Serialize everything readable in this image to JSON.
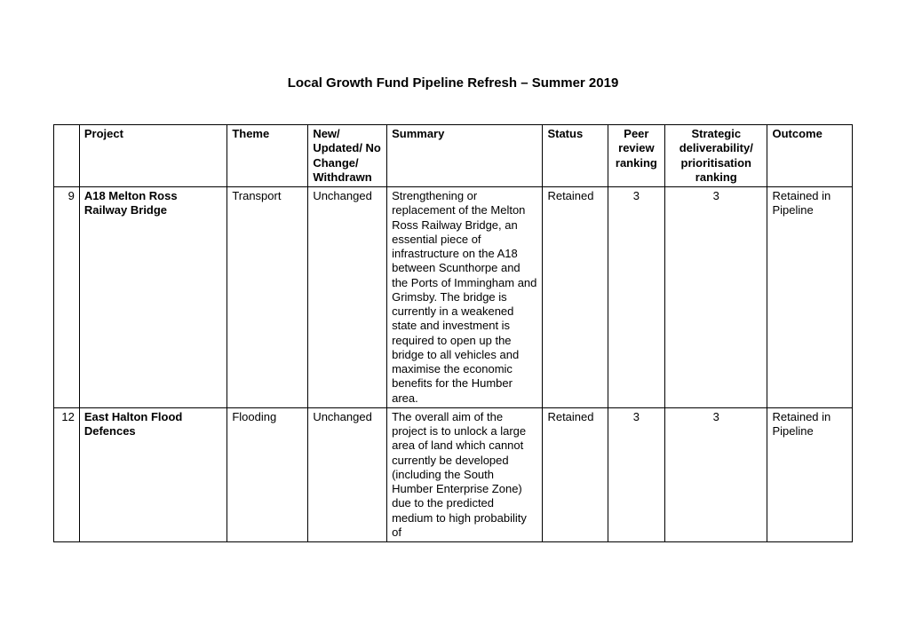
{
  "title": "Local Growth Fund Pipeline Refresh – Summer 2019",
  "headers": {
    "num": "",
    "project": "Project",
    "theme": "Theme",
    "new": "New/ Updated/ No Change/ Withdrawn",
    "summary": "Summary",
    "status": "Status",
    "peer": "Peer review ranking",
    "strategic": "Strategic deliverability/ prioritisation ranking",
    "outcome": "Outcome"
  },
  "rows": [
    {
      "num": "9",
      "project": "A18 Melton Ross Railway Bridge",
      "theme": "Transport",
      "new": "Unchanged",
      "summary": "Strengthening or replacement of the Melton Ross Railway Bridge, an essential piece of infrastructure on the A18 between Scunthorpe and the Ports of Immingham and Grimsby. The bridge is currently in a weakened state and investment is required to open up the bridge to all vehicles and maximise the economic benefits for the Humber area.",
      "status": "Retained",
      "peer": "3",
      "strategic": "3",
      "outcome": "Retained in Pipeline"
    },
    {
      "num": "12",
      "project": "East Halton Flood Defences",
      "theme": "Flooding",
      "new": "Unchanged",
      "summary": "The overall aim of the project is to unlock a large area of land which cannot currently be developed (including the South Humber Enterprise Zone) due to the predicted medium to high probability of",
      "status": "Retained",
      "peer": "3",
      "strategic": "3",
      "outcome": "Retained in Pipeline"
    }
  ]
}
